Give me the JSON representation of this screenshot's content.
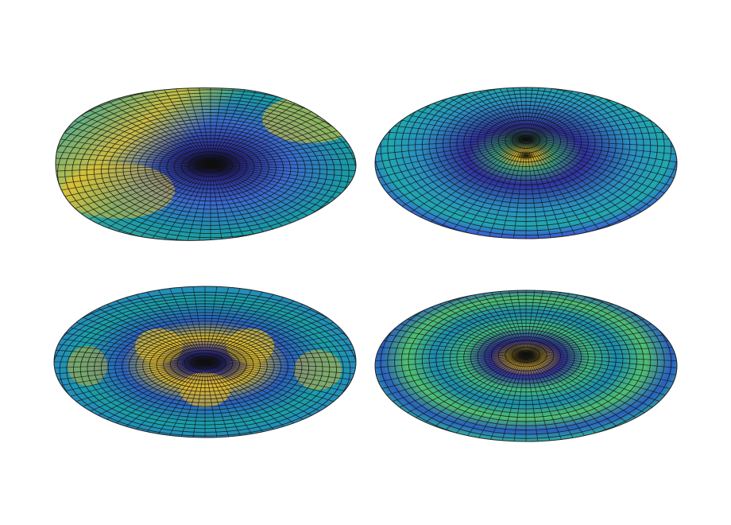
{
  "figure": {
    "panels": [
      {
        "id": "top-left",
        "shape": "teardrop",
        "colors": [
          "#0a0a2a",
          "#3b3fc8",
          "#1a9aa8",
          "#d8c830"
        ]
      },
      {
        "id": "top-right",
        "shape": "central-peak",
        "colors": [
          "#3b3fc8",
          "#1a9aa8",
          "#d8c830"
        ]
      },
      {
        "id": "bottom-left",
        "shape": "four-lobes",
        "colors": [
          "#0a0a2a",
          "#3b3fc8",
          "#1a9aa8",
          "#e0b830"
        ]
      },
      {
        "id": "bottom-right",
        "shape": "spiral-ripples",
        "colors": [
          "#0a0a2a",
          "#3b3fc8",
          "#1a9aa8",
          "#6cc860"
        ]
      }
    ],
    "colormap": "viridis-like",
    "mesh_color": "#111111"
  }
}
